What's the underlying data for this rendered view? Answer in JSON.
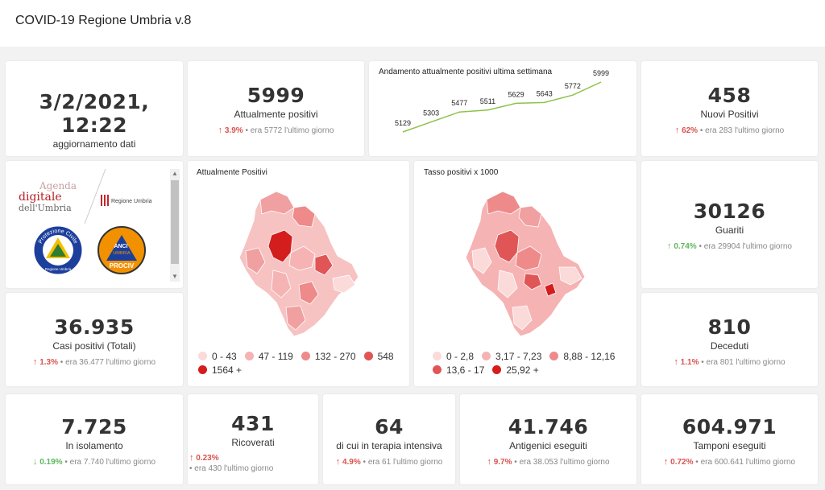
{
  "app": {
    "title": "COVID-19 Regione Umbria v.8"
  },
  "update": {
    "datetime": "3/2/2021, 12:22",
    "label": "aggiornamento dati"
  },
  "positivi": {
    "value": "5999",
    "label": "Attualmente positivi",
    "pct": "3.9%",
    "prev": "era 5772 l'ultimo giorno"
  },
  "trend": {
    "title": "Andamento attualmente positivi ultima settimana",
    "chart_data": {
      "type": "line",
      "values": [
        5129,
        5303,
        5477,
        5511,
        5629,
        5643,
        5772,
        5999
      ],
      "labels": [
        "5129",
        "5303",
        "5477",
        "5511",
        "5629",
        "5643",
        "5772",
        "5999"
      ],
      "color": "#8bc34a"
    }
  },
  "nuovi": {
    "value": "458",
    "label": "Nuovi Positivi",
    "pct": "62%",
    "prev": "era 283 l'ultimo giorno"
  },
  "logos": {
    "agenda_line1": "Agenda",
    "agenda_line2": "digitale",
    "agenda_line3": "dell'Umbria",
    "regione": "Regione Umbria",
    "protciv_ring": "Protezione Civile",
    "protciv_bottom": "Regione Umbria",
    "anci_top": "ANCI",
    "anci_mid": "UMBRIA",
    "anci_bottom": "PROCIV"
  },
  "map1": {
    "title": "Attualmente Positivi",
    "legend": [
      {
        "label": "0 - 43",
        "color": "#fbdada"
      },
      {
        "label": "47 - 119",
        "color": "#f6b3b3"
      },
      {
        "label": "132 - 270",
        "color": "#ee8a8a"
      },
      {
        "label": "548",
        "color": "#e05656"
      },
      {
        "label": "1564 +",
        "color": "#d41d1d"
      }
    ]
  },
  "map2": {
    "title": "Tasso positivi x 1000",
    "legend": [
      {
        "label": "0 - 2,8",
        "color": "#fbdada"
      },
      {
        "label": "3,17 - 7,23",
        "color": "#f6b3b3"
      },
      {
        "label": "8,88 - 12,16",
        "color": "#ee8a8a"
      },
      {
        "label": "13,6 - 17",
        "color": "#e05656"
      },
      {
        "label": "25,92 +",
        "color": "#d41d1d"
      }
    ]
  },
  "guariti": {
    "value": "30126",
    "label": "Guariti",
    "pct": "0.74%",
    "prev": "era 29904 l'ultimo giorno"
  },
  "casi": {
    "value": "36.935",
    "label": "Casi positivi (Totali)",
    "pct": "1.3%",
    "prev": "era 36.477 l'ultimo giorno"
  },
  "deceduti": {
    "value": "810",
    "label": "Deceduti",
    "pct": "1.1%",
    "prev": "era 801 l'ultimo giorno"
  },
  "isolamento": {
    "value": "7.725",
    "label": "In isolamento",
    "pct": "0.19%",
    "prev": "era 7.740 l'ultimo giorno"
  },
  "ricoverati": {
    "value": "431",
    "label": "Ricoverati",
    "pct": "0.23%",
    "prev": "era 430 l'ultimo giorno"
  },
  "intensiva": {
    "value": "64",
    "label": "di cui in terapia intensiva",
    "pct": "4.9%",
    "prev": "era 61 l'ultimo giorno"
  },
  "antigenici": {
    "value": "41.746",
    "label": "Antigenici eseguiti",
    "pct": "9.7%",
    "prev": "era 38.053 l'ultimo giorno"
  },
  "tamponi": {
    "value": "604.971",
    "label": "Tamponi eseguiti",
    "pct": "0.72%",
    "prev": "era 600.641 l'ultimo giorno"
  }
}
